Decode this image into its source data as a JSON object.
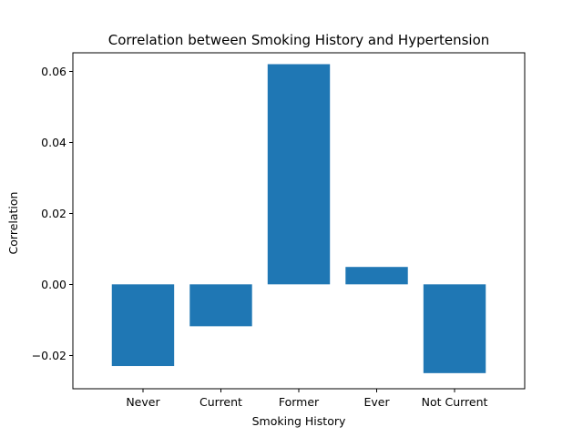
{
  "chart_data": {
    "type": "bar",
    "title": "Correlation between Smoking History and Hypertension",
    "xlabel": "Smoking History",
    "ylabel": "Correlation",
    "categories": [
      "Never",
      "Current",
      "Former",
      "Ever",
      "Not Current"
    ],
    "values": [
      -0.023,
      -0.0118,
      0.062,
      0.0049,
      -0.025
    ],
    "ylim": [
      -0.0294,
      0.0652
    ],
    "yticks": [
      -0.02,
      0.0,
      0.02,
      0.04,
      0.06
    ],
    "ytick_labels": [
      "−0.02",
      "0.00",
      "0.02",
      "0.04",
      "0.06"
    ],
    "bar_color": "#1f77b4",
    "grid": false,
    "legend": "none"
  }
}
